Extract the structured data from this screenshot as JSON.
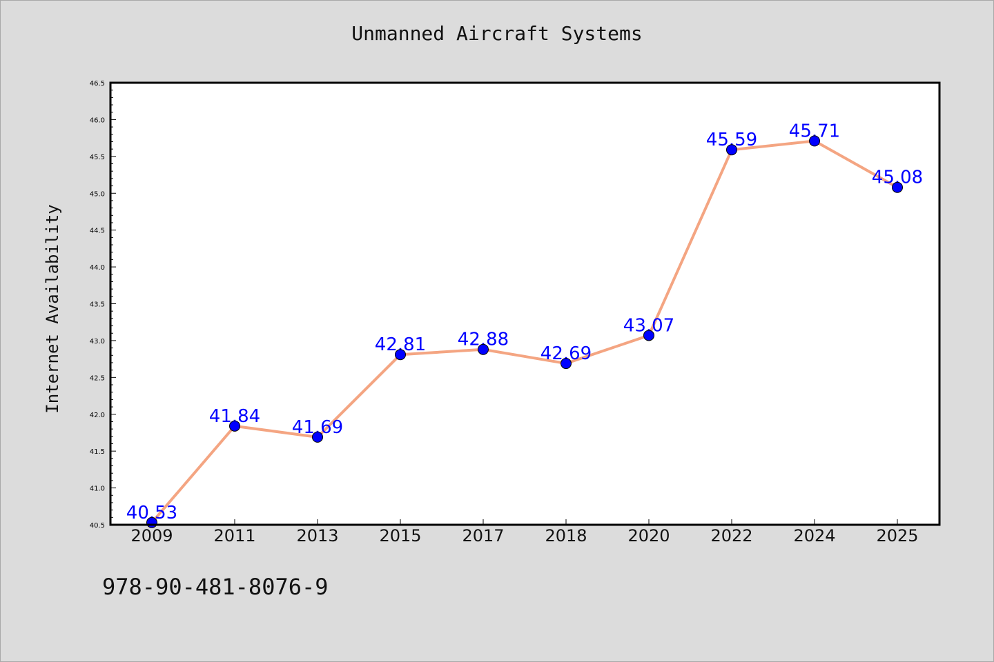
{
  "chart_data": {
    "type": "line",
    "title": "Unmanned Aircraft Systems",
    "xlabel": "",
    "ylabel": "Internet Availability",
    "categories": [
      "2009",
      "2011",
      "2013",
      "2015",
      "2017",
      "2018",
      "2020",
      "2022",
      "2024",
      "2025"
    ],
    "series": [
      {
        "values": [
          40.53,
          41.84,
          41.69,
          42.81,
          42.88,
          42.69,
          43.07,
          45.59,
          45.71,
          45.08
        ]
      }
    ],
    "data_labels": [
      "40.53",
      "41.84",
      "41.69",
      "42.81",
      "42.88",
      "42.69",
      "43.07",
      "45.59",
      "45.71",
      "45.08"
    ],
    "ylim": [
      40.5,
      46.5
    ],
    "yticks": [
      "40.5",
      "41.0",
      "41.5",
      "42.0",
      "42.5",
      "43.0",
      "43.5",
      "44.0",
      "44.5",
      "45.0",
      "45.5",
      "46.0",
      "46.5"
    ],
    "grid": false,
    "legend": "none",
    "colors": {
      "line": "#f4a582",
      "marker": "#0000ff",
      "label": "#0000ff",
      "background": "#dcdcdc",
      "plot_background": "#ffffff"
    }
  },
  "footnote": "978-90-481-8076-9"
}
